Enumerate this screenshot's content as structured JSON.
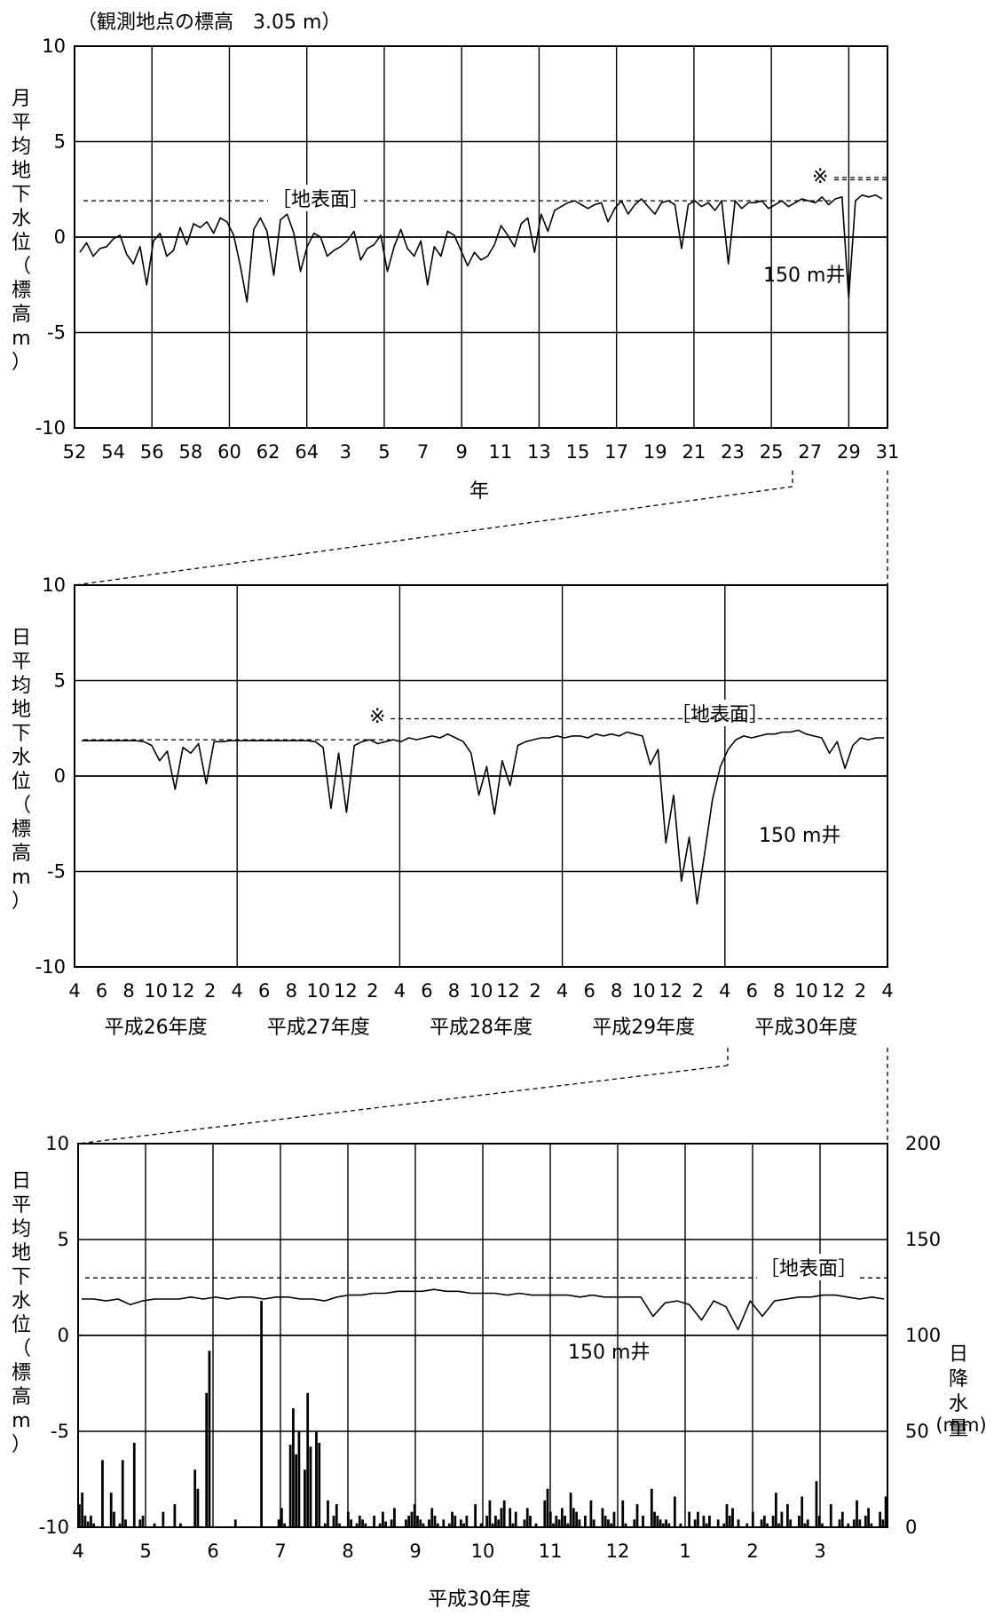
{
  "header": {
    "station_elevation": "（観測地点の標高　3.05 m）"
  },
  "chart_data": [
    {
      "type": "line",
      "ylabel": "月平均地下水位（標高m）",
      "xlabel": "年",
      "ylim": [
        -10,
        10
      ],
      "yticks": [
        "10",
        "5",
        "0",
        "-5",
        "-10"
      ],
      "xticks": [
        "52",
        "54",
        "56",
        "58",
        "60",
        "62",
        "64",
        "3",
        "5",
        "7",
        "9",
        "11",
        "13",
        "15",
        "17",
        "19",
        "21",
        "23",
        "25",
        "27",
        "29",
        "31"
      ],
      "annotations": {
        "surface": "［地表面］",
        "well": "150 m井",
        "mark": "※"
      },
      "surface_level": [
        1.9,
        3.0
      ],
      "grid": true,
      "series": [
        {
          "values": [
            -0.8,
            -0.3,
            -1.0,
            -0.6,
            -0.5,
            -0.1,
            0.1,
            -0.9,
            -1.4,
            -0.5,
            -2.5,
            -0.2,
            0.2,
            -1.0,
            -0.7,
            0.5,
            -0.4,
            0.7,
            0.5,
            0.8,
            0.2,
            1.0,
            0.8,
            0.1,
            -1.5,
            -3.4,
            0.4,
            1.0,
            0.3,
            -2.0,
            0.9,
            1.2,
            0.2,
            -1.8,
            -0.5,
            0.2,
            0.0,
            -1.0,
            -0.7,
            -0.5,
            -0.2,
            0.3,
            -1.2,
            -0.6,
            -0.4,
            0.1,
            -1.8,
            -0.5,
            0.4,
            -0.6,
            -1.0,
            -0.2,
            -2.5,
            -0.5,
            -1.0,
            0.3,
            0.1,
            -0.7,
            -1.5,
            -0.8,
            -1.2,
            -1.0,
            -0.4,
            0.6,
            0.1,
            -0.5,
            0.7,
            1.0,
            -0.8,
            1.2,
            0.3,
            1.4,
            1.6,
            1.8,
            1.9,
            1.7,
            1.5,
            1.7,
            1.8,
            0.8,
            1.5,
            1.9,
            1.2,
            1.7,
            2.0,
            1.6,
            1.2,
            1.8,
            1.9,
            1.7,
            -0.6,
            1.7,
            1.9,
            1.6,
            1.8,
            1.4,
            1.9,
            -1.4,
            1.9,
            1.5,
            1.8,
            1.8,
            1.9,
            1.5,
            1.7,
            1.9,
            1.6,
            1.8,
            2.0,
            1.9,
            1.8,
            2.1,
            1.7,
            2.0,
            2.1,
            -3.2,
            1.9,
            2.2,
            2.1,
            2.2,
            2.0
          ]
        }
      ],
      "xrange": [
        52,
        31
      ]
    },
    {
      "type": "line",
      "ylabel": "日平均地下水位（標高m）",
      "ylim": [
        -10,
        10
      ],
      "yticks": [
        "10",
        "5",
        "0",
        "-5",
        "-10"
      ],
      "xticks": [
        "4",
        "6",
        "8",
        "10",
        "12",
        "2",
        "4",
        "6",
        "8",
        "10",
        "12",
        "2",
        "4",
        "6",
        "8",
        "10",
        "12",
        "2",
        "4",
        "6",
        "8",
        "10",
        "12",
        "2",
        "4",
        "6",
        "8",
        "10",
        "12",
        "2",
        "4"
      ],
      "xgroups": [
        "平成26年度",
        "平成27年度",
        "平成28年度",
        "平成29年度",
        "平成30年度"
      ],
      "annotations": {
        "surface": "［地表面］",
        "well": "150 m井",
        "mark": "※"
      },
      "surface_level": [
        1.9,
        3.0
      ],
      "grid": true,
      "series": [
        {
          "values": [
            1.85,
            1.85,
            1.85,
            1.85,
            1.85,
            1.85,
            1.85,
            1.85,
            1.8,
            1.6,
            0.8,
            1.3,
            -0.7,
            1.5,
            1.2,
            1.7,
            -0.4,
            1.8,
            1.8,
            1.85,
            1.85,
            1.85,
            1.85,
            1.85,
            1.85,
            1.85,
            1.85,
            1.85,
            1.85,
            1.85,
            1.8,
            1.5,
            -1.7,
            1.2,
            -1.9,
            1.6,
            1.8,
            1.9,
            1.7,
            1.8,
            1.9,
            1.8,
            2.0,
            1.9,
            2.0,
            2.1,
            2.0,
            2.2,
            2.0,
            1.8,
            1.2,
            -1.0,
            0.5,
            -2.0,
            0.8,
            -0.5,
            1.6,
            1.8,
            1.9,
            2.0,
            2.0,
            2.1,
            2.0,
            2.1,
            2.1,
            2.0,
            2.2,
            2.1,
            2.2,
            2.1,
            2.3,
            2.2,
            2.1,
            0.6,
            1.4,
            -3.5,
            -1.0,
            -5.5,
            -3.2,
            -6.7,
            -4.0,
            -1.2,
            0.5,
            1.4,
            1.9,
            2.1,
            2.0,
            2.1,
            2.2,
            2.2,
            2.3,
            2.3,
            2.4,
            2.2,
            2.1,
            2.0,
            1.2,
            1.8,
            0.4,
            1.6,
            2.0,
            1.9,
            2.0,
            2.0
          ]
        }
      ]
    },
    {
      "type": "line+bar",
      "ylabel": "日平均地下水位（標高m）",
      "y2label": "日降水量",
      "y2unit": "(mm)",
      "xlabel": "平成30年度",
      "ylim": [
        -10,
        10
      ],
      "y2lim": [
        0,
        200
      ],
      "yticks": [
        "10",
        "5",
        "0",
        "-5",
        "-10"
      ],
      "y2ticks": [
        "200",
        "150",
        "100",
        "50",
        "0"
      ],
      "xticks": [
        "4",
        "5",
        "6",
        "7",
        "8",
        "9",
        "10",
        "11",
        "12",
        "1",
        "2",
        "3"
      ],
      "annotations": {
        "surface": "［地表面］",
        "well": "150 m井"
      },
      "surface_level": 3.0,
      "grid": true,
      "series": [
        {
          "values": [
            1.9,
            1.9,
            1.8,
            1.9,
            1.6,
            1.8,
            1.9,
            1.9,
            1.9,
            2.0,
            1.9,
            2.0,
            1.9,
            2.0,
            2.0,
            1.9,
            2.0,
            2.0,
            1.9,
            1.9,
            1.8,
            2.0,
            2.1,
            2.1,
            2.2,
            2.2,
            2.3,
            2.3,
            2.3,
            2.4,
            2.3,
            2.3,
            2.2,
            2.2,
            2.2,
            2.1,
            2.2,
            2.1,
            2.1,
            2.1,
            2.1,
            2.0,
            2.1,
            2.0,
            2.0,
            2.0,
            2.0,
            1.0,
            1.7,
            1.8,
            1.6,
            0.8,
            1.8,
            1.5,
            0.3,
            1.8,
            1.0,
            1.8,
            1.9,
            2.0,
            2.0,
            2.1,
            2.1,
            2.0,
            1.9,
            2.0,
            1.9
          ]
        },
        {
          "values": [
            12,
            18,
            6,
            3,
            6,
            2,
            0,
            0,
            35,
            0,
            0,
            18,
            8,
            0,
            2,
            35,
            4,
            0,
            0,
            44,
            0,
            4,
            6,
            0,
            0,
            0,
            2,
            0,
            0,
            8,
            0,
            0,
            0,
            12,
            0,
            2,
            0,
            0,
            0,
            0,
            30,
            20,
            0,
            0,
            70,
            92,
            0,
            0,
            0,
            0,
            0,
            0,
            0,
            0,
            4,
            0,
            0,
            0,
            0,
            0,
            0,
            0,
            0,
            118,
            0,
            0,
            0,
            0,
            0,
            4,
            10,
            2,
            0,
            43,
            62,
            38,
            50,
            0,
            30,
            70,
            42,
            0,
            50,
            44,
            0,
            2,
            14,
            0,
            6,
            12,
            2,
            0,
            0,
            8,
            4,
            0,
            2,
            6,
            4,
            2,
            0,
            0,
            6,
            0,
            2,
            8,
            3,
            0,
            4,
            10,
            0,
            0,
            0,
            4,
            6,
            8,
            12,
            6,
            4,
            2,
            0,
            4,
            10,
            6,
            2,
            0,
            4,
            0,
            2,
            8,
            6,
            0,
            4,
            2,
            6,
            0,
            0,
            12,
            0,
            2,
            0,
            6,
            14,
            2,
            6,
            4,
            10,
            14,
            0,
            10,
            2,
            8,
            0,
            0,
            4,
            10,
            6,
            0,
            2,
            0,
            0,
            14,
            20,
            8,
            2,
            6,
            4,
            10,
            6,
            2,
            18,
            10,
            8,
            4,
            0,
            6,
            0,
            14,
            4,
            0,
            0,
            10,
            6,
            4,
            2,
            8,
            0,
            0,
            14,
            2,
            0,
            0,
            4,
            12,
            0,
            6,
            0,
            0,
            20,
            8,
            6,
            4,
            2,
            4,
            2,
            0,
            16,
            0,
            2,
            0,
            0,
            8,
            0,
            4,
            8,
            0,
            6,
            2,
            6,
            0,
            0,
            4,
            0,
            2,
            12,
            6,
            10,
            0,
            4,
            0,
            0,
            2,
            0,
            8,
            0,
            0,
            4,
            6,
            2,
            0,
            6,
            18,
            2,
            8,
            0,
            12,
            4,
            0,
            0,
            6,
            16,
            2,
            4,
            0,
            0,
            24,
            6,
            2,
            0,
            0,
            12,
            0,
            0,
            4,
            8,
            0,
            2,
            0,
            4,
            14,
            4,
            0,
            6,
            10,
            2,
            0,
            0,
            8,
            4,
            16
          ]
        }
      ]
    }
  ]
}
